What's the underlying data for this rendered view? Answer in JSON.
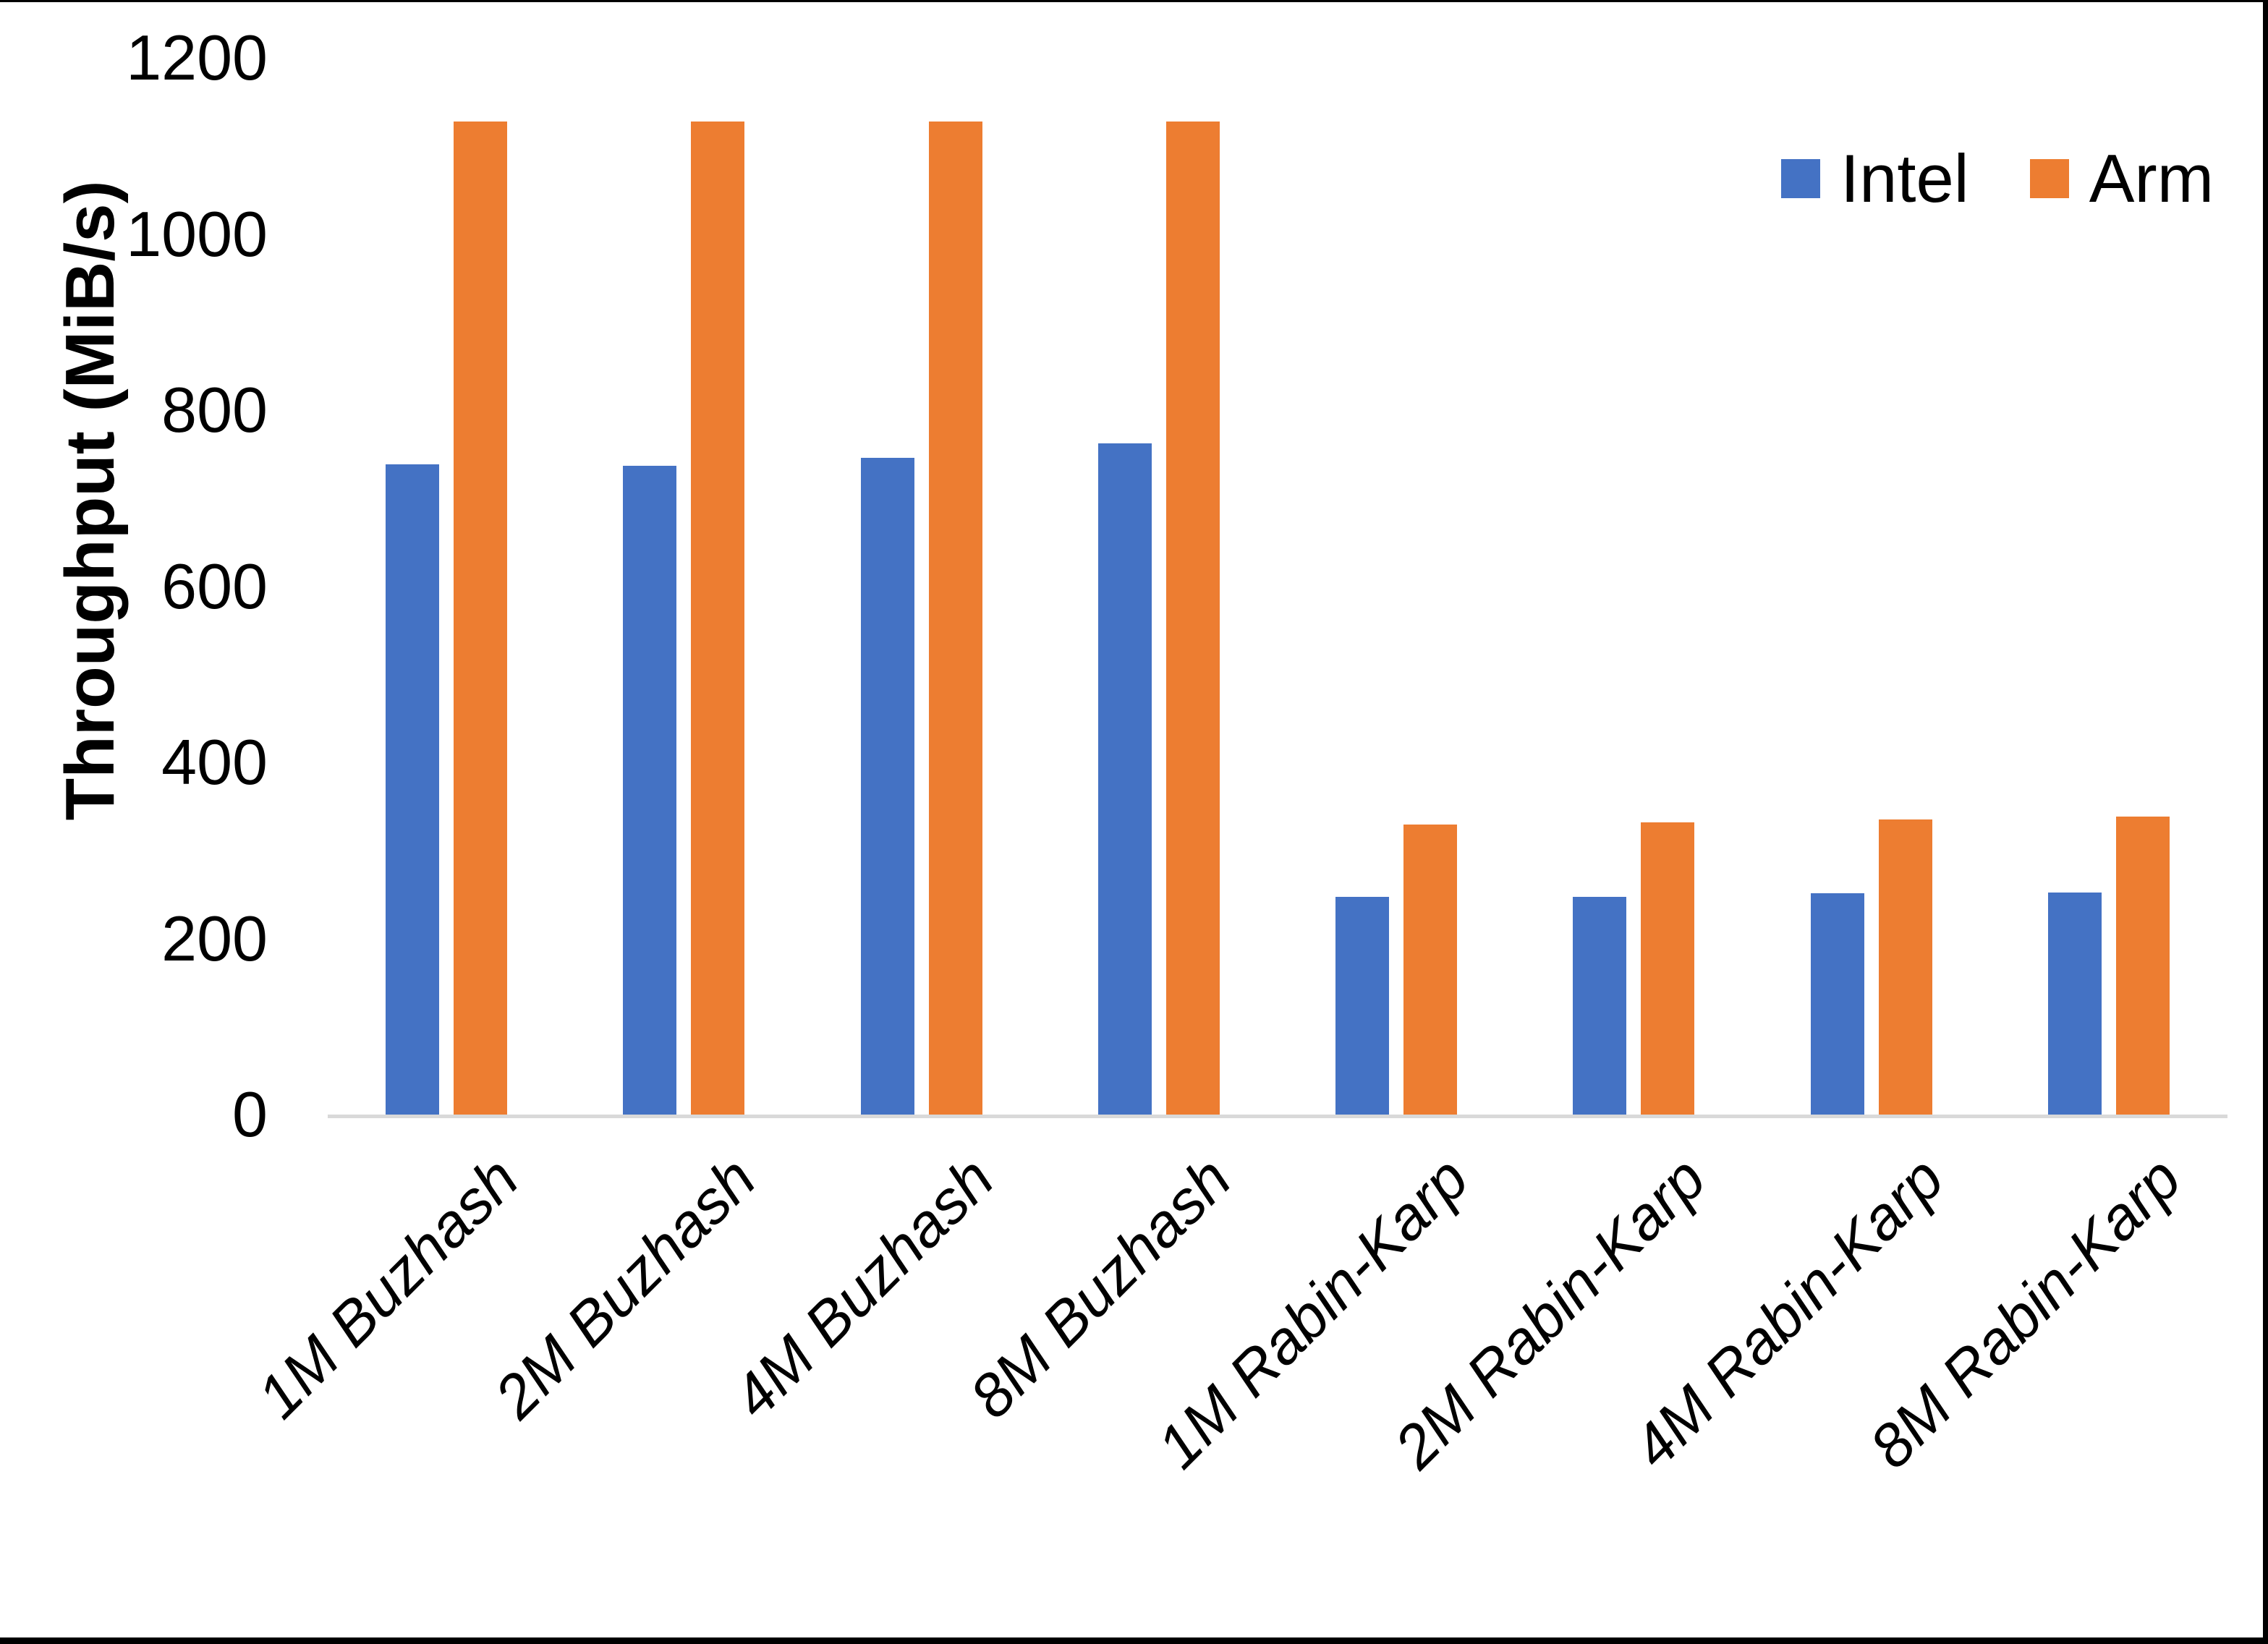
{
  "chart_data": {
    "type": "bar",
    "title": "",
    "xlabel": "",
    "ylabel": "Throughput (MiB/s)",
    "categories": [
      "1M Buzhash",
      "2M Buzhash",
      "4M Buzhash",
      "8M Buzhash",
      "1M Rabin-Karp",
      "2M Rabin-Karp",
      "4M Rabin-Karp",
      "8M Rabin-Karp"
    ],
    "series": [
      {
        "name": "Intel",
        "color": "#4472C4",
        "values": [
          738,
          737,
          746,
          762,
          247,
          247,
          251,
          252
        ]
      },
      {
        "name": "Arm",
        "color": "#ED7D31",
        "values": [
          1128,
          1128,
          1128,
          1128,
          329,
          332,
          335,
          338
        ]
      }
    ],
    "ylim": [
      0,
      1200
    ],
    "yticks": [
      0,
      200,
      400,
      600,
      800,
      1000,
      1200
    ],
    "grid": false,
    "legend_position": "top-right",
    "x_label_rotation_deg": -45
  },
  "colors": {
    "intel": "#4472C4",
    "arm": "#ED7D31",
    "axis_line": "#D9D9D9",
    "text": "#000000",
    "frame": "#000000",
    "background": "#FFFFFF"
  }
}
